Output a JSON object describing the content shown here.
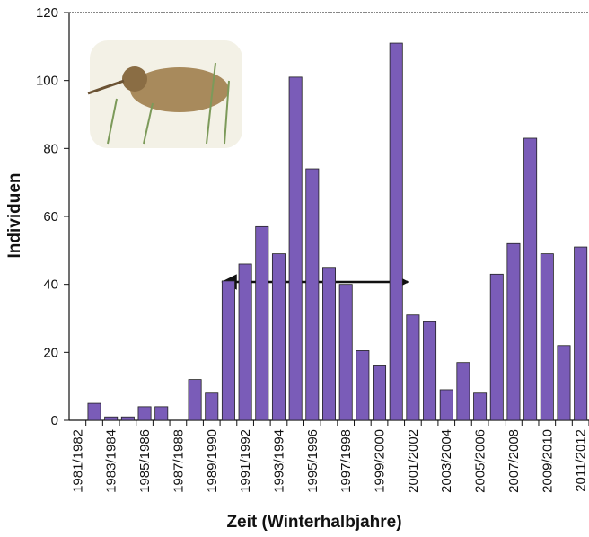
{
  "chart_data": {
    "type": "bar",
    "y_label": "Individuen",
    "x_label": "Zeit (Winterhalbjahre)",
    "categories": [
      "1981/1982",
      null,
      "1983/1984",
      null,
      "1985/1986",
      null,
      "1987/1988",
      null,
      "1989/1990",
      null,
      "1991/1992",
      null,
      "1993/1994",
      null,
      "1995/1996",
      null,
      "1997/1998",
      null,
      "1999/2000",
      null,
      "2001/2002",
      null,
      "2003/2004",
      null,
      "2005/2006",
      null,
      "2007/2008",
      null,
      "2009/2010",
      null,
      "2011/2012"
    ],
    "values": [
      0,
      5,
      1,
      1,
      4,
      4,
      0,
      12,
      8,
      41,
      46,
      57,
      49,
      101,
      74,
      45,
      40,
      20.5,
      16,
      111,
      31,
      29,
      9,
      17,
      8,
      43,
      52,
      83,
      49,
      22,
      51
    ],
    "color": "#7a5cb8",
    "ylim": [
      0,
      120
    ],
    "yticks": [
      0,
      20,
      40,
      60,
      80,
      100,
      120
    ]
  }
}
